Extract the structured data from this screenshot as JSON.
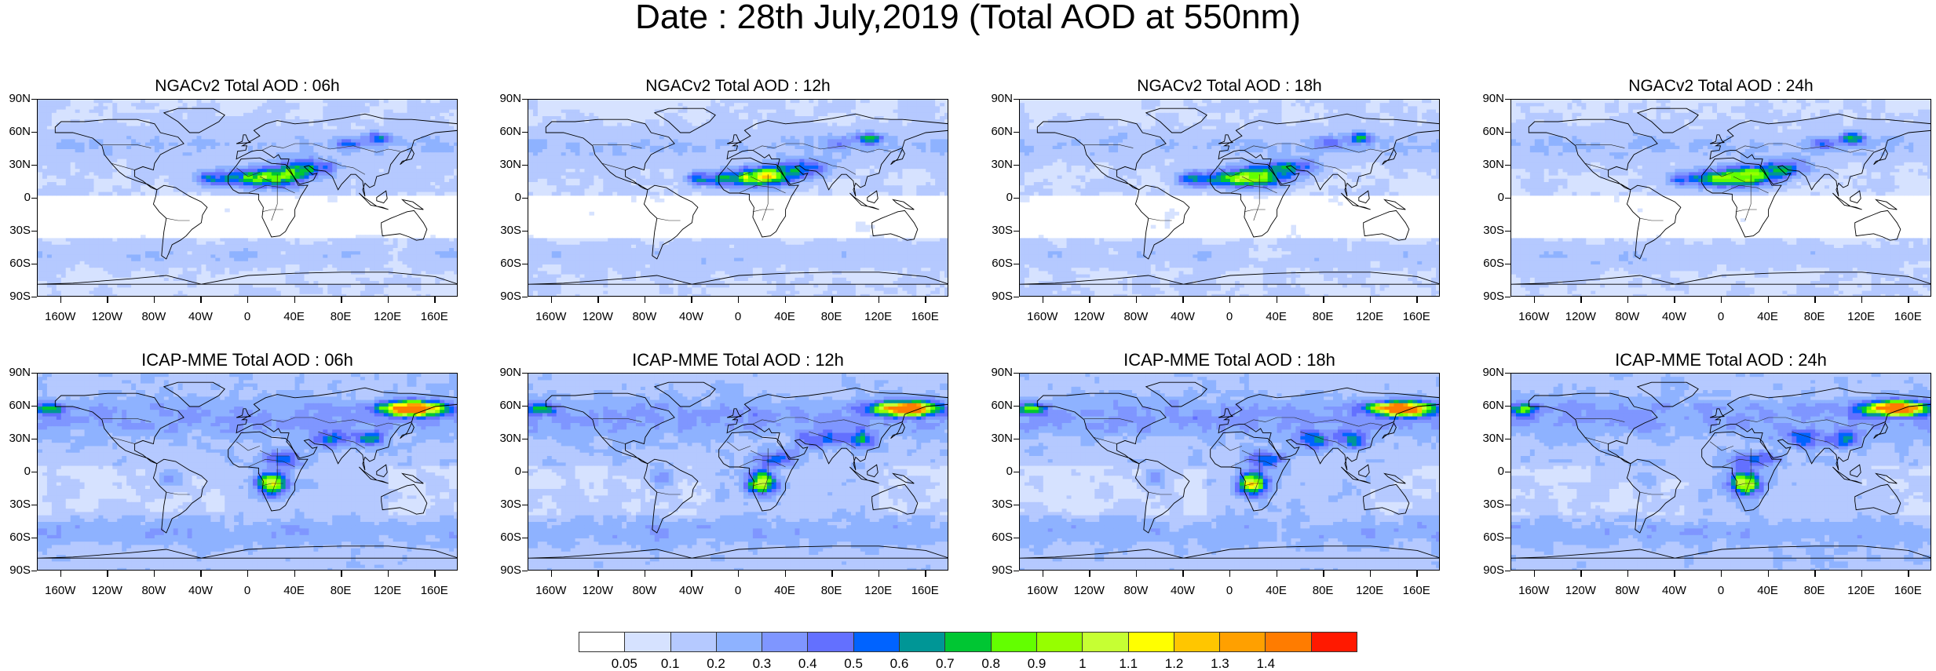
{
  "title": "Date : 28th July,2019 (Total AOD at 550nm)",
  "lat_labels": [
    "90N",
    "60N",
    "30N",
    "0",
    "30S",
    "60S",
    "90S"
  ],
  "lon_labels": [
    "160W",
    "120W",
    "80W",
    "40W",
    "0",
    "40E",
    "80E",
    "120E",
    "160E"
  ],
  "panels": [
    {
      "title": "NGACv2 Total AOD : 06h",
      "model": "ngac"
    },
    {
      "title": "NGACv2 Total AOD : 12h",
      "model": "ngac"
    },
    {
      "title": "NGACv2 Total AOD : 18h",
      "model": "ngac"
    },
    {
      "title": "NGACv2 Total AOD : 24h",
      "model": "ngac"
    },
    {
      "title": "ICAP-MME Total AOD : 06h",
      "model": "icap"
    },
    {
      "title": "ICAP-MME Total AOD : 12h",
      "model": "icap"
    },
    {
      "title": "ICAP-MME Total AOD : 18h",
      "model": "icap"
    },
    {
      "title": "ICAP-MME Total AOD : 24h",
      "model": "icap"
    }
  ],
  "colorbar": {
    "colors": [
      "#ffffff",
      "#d6e2ff",
      "#b5c9ff",
      "#8eb2ff",
      "#7f96ff",
      "#6370ff",
      "#0063ff",
      "#009696",
      "#00c633",
      "#63ff00",
      "#96ff00",
      "#c6ff33",
      "#ffff00",
      "#ffc600",
      "#ffa000",
      "#ff7c00",
      "#ff1900"
    ],
    "labels": [
      "0.05",
      "0.1",
      "0.2",
      "0.3",
      "0.4",
      "0.5",
      "0.6",
      "0.7",
      "0.8",
      "0.9",
      "1",
      "1.1",
      "1.2",
      "1.3",
      "1.4"
    ]
  }
}
